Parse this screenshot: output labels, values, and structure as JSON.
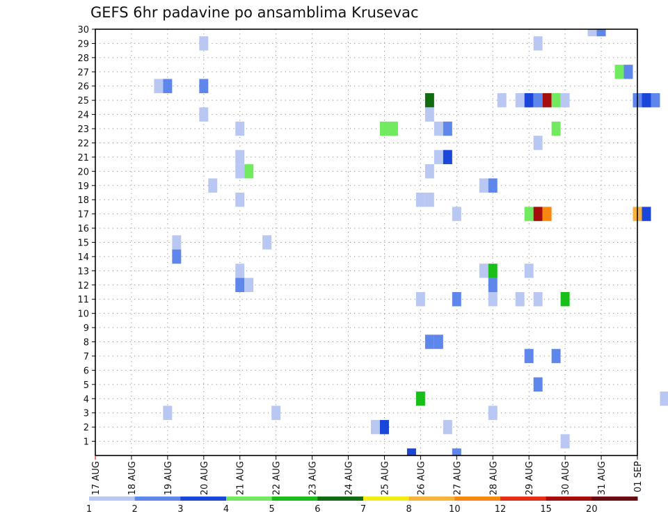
{
  "chart_data": {
    "type": "heatmap",
    "title": "GEFS 6hr padavine po ansamblima Krusevac",
    "xlabel": "",
    "ylabel": "",
    "x_ticks": [
      "17 AUG",
      "18 AUG",
      "19 AUG",
      "20 AUG",
      "21 AUG",
      "22 AUG",
      "23 AUG",
      "24 AUG",
      "25 AUG",
      "26 AUG",
      "27 AUG",
      "28 AUG",
      "29 AUG",
      "30 AUG",
      "31 AUG",
      "01 SEP"
    ],
    "y_ticks": [
      1,
      2,
      3,
      4,
      5,
      6,
      7,
      8,
      9,
      10,
      11,
      12,
      13,
      14,
      15,
      16,
      17,
      18,
      19,
      20,
      21,
      22,
      23,
      24,
      25,
      26,
      27,
      28,
      29,
      30
    ],
    "xlim_days": [
      0,
      15
    ],
    "ylim": [
      0,
      30
    ],
    "grid": true,
    "colorbar": {
      "labels": [
        "1",
        "2",
        "3",
        "4",
        "5",
        "6",
        "7",
        "8",
        "10",
        "12",
        "15",
        "20"
      ],
      "colors": [
        "#b9c8f3",
        "#5f86ea",
        "#1a46da",
        "#72ea5f",
        "#19bf19",
        "#116c11",
        "#f5ed11",
        "#f7b33a",
        "#f7870f",
        "#e42f16",
        "#a60d0d",
        "#6a0b11"
      ]
    },
    "cells": [
      {
        "member": 30,
        "t": 13.75,
        "level": 1
      },
      {
        "member": 30,
        "t": 14.0,
        "level": 2
      },
      {
        "member": 29,
        "t": 3.0,
        "level": 1
      },
      {
        "member": 29,
        "t": 12.25,
        "level": 1
      },
      {
        "member": 27,
        "t": 14.5,
        "level": 4
      },
      {
        "member": 27,
        "t": 14.75,
        "level": 2
      },
      {
        "member": 26,
        "t": 1.75,
        "level": 1
      },
      {
        "member": 26,
        "t": 2.0,
        "level": 2
      },
      {
        "member": 26,
        "t": 3.0,
        "level": 2
      },
      {
        "member": 25,
        "t": 9.25,
        "level": 6
      },
      {
        "member": 25,
        "t": 11.25,
        "level": 1
      },
      {
        "member": 25,
        "t": 11.75,
        "level": 1
      },
      {
        "member": 25,
        "t": 12.0,
        "level": 3
      },
      {
        "member": 25,
        "t": 12.25,
        "level": 2
      },
      {
        "member": 25,
        "t": 12.5,
        "level": 11
      },
      {
        "member": 25,
        "t": 12.75,
        "level": 4
      },
      {
        "member": 25,
        "t": 13.0,
        "level": 1
      },
      {
        "member": 25,
        "t": 15.0,
        "level": 2
      },
      {
        "member": 25,
        "t": 15.25,
        "level": 3
      },
      {
        "member": 25,
        "t": 15.5,
        "level": 2
      },
      {
        "member": 24,
        "t": 3.0,
        "level": 1
      },
      {
        "member": 24,
        "t": 9.25,
        "level": 1
      },
      {
        "member": 23,
        "t": 4.0,
        "level": 1
      },
      {
        "member": 23,
        "t": 8.0,
        "level": 4
      },
      {
        "member": 23,
        "t": 8.25,
        "level": 4
      },
      {
        "member": 23,
        "t": 9.5,
        "level": 1
      },
      {
        "member": 23,
        "t": 9.75,
        "level": 2
      },
      {
        "member": 23,
        "t": 12.75,
        "level": 4
      },
      {
        "member": 22,
        "t": 12.25,
        "level": 1
      },
      {
        "member": 21,
        "t": 4.0,
        "level": 1
      },
      {
        "member": 21,
        "t": 9.5,
        "level": 1
      },
      {
        "member": 21,
        "t": 9.75,
        "level": 3
      },
      {
        "member": 20,
        "t": 4.0,
        "level": 1
      },
      {
        "member": 20,
        "t": 4.25,
        "level": 4
      },
      {
        "member": 20,
        "t": 9.25,
        "level": 1
      },
      {
        "member": 19,
        "t": 3.25,
        "level": 1
      },
      {
        "member": 19,
        "t": 10.75,
        "level": 1
      },
      {
        "member": 19,
        "t": 11.0,
        "level": 2
      },
      {
        "member": 18,
        "t": 4.0,
        "level": 1
      },
      {
        "member": 18,
        "t": 9.0,
        "level": 1
      },
      {
        "member": 18,
        "t": 9.25,
        "level": 1
      },
      {
        "member": 17,
        "t": 10.0,
        "level": 1
      },
      {
        "member": 17,
        "t": 12.0,
        "level": 4
      },
      {
        "member": 17,
        "t": 12.25,
        "level": 11
      },
      {
        "member": 17,
        "t": 12.5,
        "level": 9
      },
      {
        "member": 17,
        "t": 15.0,
        "level": 8
      },
      {
        "member": 17,
        "t": 15.25,
        "level": 3
      },
      {
        "member": 15,
        "t": 2.25,
        "level": 1
      },
      {
        "member": 15,
        "t": 4.75,
        "level": 1
      },
      {
        "member": 14,
        "t": 2.25,
        "level": 2
      },
      {
        "member": 13,
        "t": 4.0,
        "level": 1
      },
      {
        "member": 13,
        "t": 10.75,
        "level": 1
      },
      {
        "member": 13,
        "t": 11.0,
        "level": 5
      },
      {
        "member": 13,
        "t": 12.0,
        "level": 1
      },
      {
        "member": 12,
        "t": 4.0,
        "level": 2
      },
      {
        "member": 12,
        "t": 4.25,
        "level": 1
      },
      {
        "member": 12,
        "t": 11.0,
        "level": 2
      },
      {
        "member": 11,
        "t": 9.0,
        "level": 1
      },
      {
        "member": 11,
        "t": 10.0,
        "level": 2
      },
      {
        "member": 11,
        "t": 11.0,
        "level": 1
      },
      {
        "member": 11,
        "t": 11.75,
        "level": 1
      },
      {
        "member": 11,
        "t": 12.25,
        "level": 1
      },
      {
        "member": 11,
        "t": 13.0,
        "level": 5
      },
      {
        "member": 8,
        "t": 9.25,
        "level": 2
      },
      {
        "member": 8,
        "t": 9.5,
        "level": 2
      },
      {
        "member": 7,
        "t": 12.0,
        "level": 2
      },
      {
        "member": 7,
        "t": 12.75,
        "level": 2
      },
      {
        "member": 5,
        "t": 12.25,
        "level": 2
      },
      {
        "member": 4,
        "t": 9.0,
        "level": 5
      },
      {
        "member": 4,
        "t": 15.75,
        "level": 1
      },
      {
        "member": 3,
        "t": 2.0,
        "level": 1
      },
      {
        "member": 3,
        "t": 5.0,
        "level": 1
      },
      {
        "member": 3,
        "t": 11.0,
        "level": 1
      },
      {
        "member": 2,
        "t": 7.75,
        "level": 1
      },
      {
        "member": 2,
        "t": 8.0,
        "level": 3
      },
      {
        "member": 2,
        "t": 9.75,
        "level": 1
      },
      {
        "member": 1,
        "t": 13.0,
        "level": 1
      },
      {
        "member": 0,
        "t": 8.75,
        "level": 3
      },
      {
        "member": 0,
        "t": 10.0,
        "level": 2
      }
    ]
  }
}
